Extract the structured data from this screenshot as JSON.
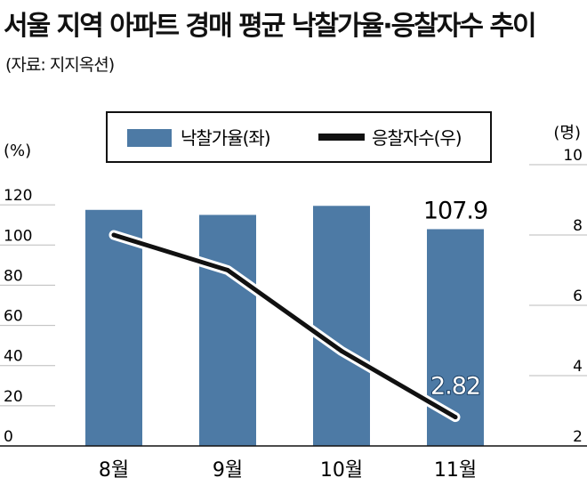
{
  "title": "서울 지역 아파트 경매 평균 낙찰가율·응찰자수 추이",
  "source": "(자료: 지지옥션)",
  "colors": {
    "bar": "#4d7aa5",
    "line": "#111111",
    "gridline": "#bbbbbb"
  },
  "chart_data": {
    "type": "bar",
    "categories": [
      "8월",
      "9월",
      "10월",
      "11월"
    ],
    "series": [
      {
        "name": "낙찰가율(좌)",
        "type": "bar",
        "axis": "left",
        "values": [
          117.5,
          115.0,
          119.5,
          107.9
        ]
      },
      {
        "name": "응찰자수(우)",
        "type": "line",
        "axis": "right",
        "values": [
          8.0,
          7.0,
          4.7,
          2.82
        ]
      }
    ],
    "y_left": {
      "unit": "(%)",
      "ticks": [
        0,
        20,
        40,
        60,
        80,
        100,
        120
      ],
      "ylim": [
        0,
        140
      ]
    },
    "y_right": {
      "unit": "(명)",
      "ticks": [
        2,
        4,
        6,
        8,
        10
      ],
      "ylim": [
        2,
        10
      ]
    },
    "data_labels": [
      {
        "series": 0,
        "index": 3,
        "text": "107.9"
      },
      {
        "series": 1,
        "index": 3,
        "text": "2.82"
      }
    ],
    "legend": {
      "position": "top-center"
    },
    "grid": true
  }
}
